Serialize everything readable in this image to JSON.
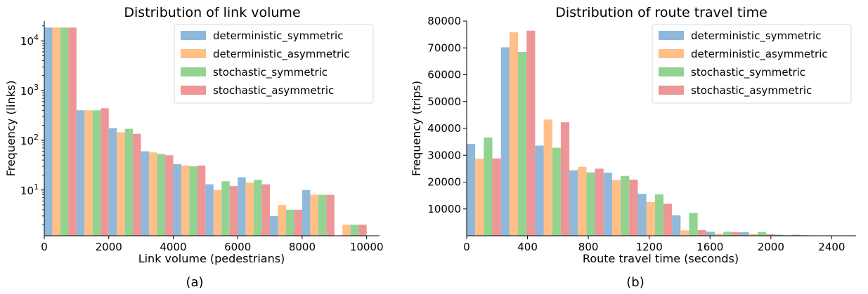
{
  "colors": {
    "deterministic_symmetric": "#8fb8da",
    "deterministic_asymmetric": "#ffbf86",
    "stochastic_symmetric": "#92d392",
    "stochastic_asymmetric": "#ee9597"
  },
  "chart_data": [
    {
      "type": "bar",
      "title": "Distribution of link volume",
      "xlabel": "Link volume (pedestrians)",
      "ylabel": "Frequency (links)",
      "caption": "(a)",
      "yscale": "log",
      "xlim": [
        0,
        10400
      ],
      "ylim": [
        1.2,
        25000
      ],
      "legend_position": "top-right",
      "bin_width": 1000,
      "x": [
        0,
        1000,
        2000,
        3000,
        4000,
        5000,
        6000,
        7000,
        8000,
        9000
      ],
      "xticks": [
        0,
        2000,
        4000,
        6000,
        8000,
        10000
      ],
      "xtick_labels": [
        "0",
        "2000",
        "4000",
        "6000",
        "8000",
        "10000"
      ],
      "yticks": [
        10,
        100,
        1000,
        10000
      ],
      "ytick_labels": [
        {
          "base": "10",
          "exp": "1"
        },
        {
          "base": "10",
          "exp": "2"
        },
        {
          "base": "10",
          "exp": "3"
        },
        {
          "base": "10",
          "exp": "4"
        }
      ],
      "series": [
        {
          "name": "deterministic_symmetric",
          "values": [
            18500,
            400,
            175,
            60,
            33,
            13,
            18,
            3,
            10,
            null
          ]
        },
        {
          "name": "deterministic_asymmetric",
          "values": [
            18500,
            400,
            145,
            57,
            31,
            10,
            14,
            5,
            8,
            2
          ]
        },
        {
          "name": "stochastic_symmetric",
          "values": [
            18500,
            400,
            170,
            53,
            30,
            15,
            16,
            4,
            8,
            2
          ]
        },
        {
          "name": "stochastic_asymmetric",
          "values": [
            18500,
            440,
            135,
            50,
            31,
            12,
            13,
            4,
            8,
            2
          ]
        }
      ]
    },
    {
      "type": "bar",
      "title": "Distribution of route travel time",
      "xlabel": "Route travel time (seconds)",
      "ylabel": "Frequency (trips)",
      "caption": "(b)",
      "yscale": "linear",
      "xlim": [
        0,
        2560
      ],
      "ylim": [
        0,
        80000
      ],
      "legend_position": "top-right",
      "bin_width": 225,
      "x": [
        0,
        225,
        450,
        675,
        900,
        1125,
        1350,
        1575,
        1800,
        2025
      ],
      "xticks": [
        0,
        400,
        800,
        1200,
        1600,
        2000,
        2400
      ],
      "xtick_labels": [
        "0",
        "400",
        "800",
        "1200",
        "1600",
        "2000",
        "2400"
      ],
      "yticks": [
        10000,
        20000,
        30000,
        40000,
        50000,
        60000,
        70000,
        80000
      ],
      "ytick_labels": [
        "10000",
        "20000",
        "30000",
        "40000",
        "50000",
        "60000",
        "70000",
        "80000"
      ],
      "series": [
        {
          "name": "deterministic_symmetric",
          "values": [
            34200,
            70200,
            33600,
            24400,
            23500,
            15600,
            7600,
            1500,
            1400,
            400
          ]
        },
        {
          "name": "deterministic_asymmetric",
          "values": [
            28700,
            75800,
            43300,
            25700,
            20800,
            12600,
            2000,
            800,
            700,
            200
          ]
        },
        {
          "name": "stochastic_symmetric",
          "values": [
            36600,
            68500,
            32800,
            23600,
            22300,
            15400,
            8500,
            1500,
            1400,
            400
          ]
        },
        {
          "name": "stochastic_asymmetric",
          "values": [
            28800,
            76400,
            42300,
            25000,
            20900,
            11900,
            2100,
            1300,
            600,
            200
          ]
        }
      ]
    }
  ]
}
